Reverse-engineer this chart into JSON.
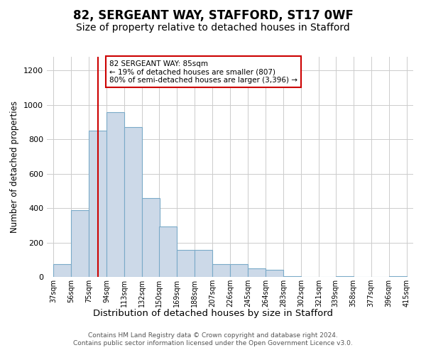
{
  "title1": "82, SERGEANT WAY, STAFFORD, ST17 0WF",
  "title2": "Size of property relative to detached houses in Stafford",
  "xlabel": "Distribution of detached houses by size in Stafford",
  "ylabel": "Number of detached properties",
  "bar_left_edges": [
    37,
    56,
    75,
    94,
    113,
    132,
    150,
    169,
    188,
    207,
    226,
    245,
    264,
    283,
    302,
    321,
    339,
    358,
    377,
    396
  ],
  "bar_heights": [
    75,
    390,
    850,
    960,
    870,
    460,
    295,
    155,
    155,
    75,
    75,
    50,
    40,
    5,
    0,
    0,
    5,
    0,
    0,
    5
  ],
  "bin_width": 19,
  "bar_color": "#ccd9e8",
  "bar_edgecolor": "#7aaac8",
  "ylim": [
    0,
    1280
  ],
  "yticks": [
    0,
    200,
    400,
    600,
    800,
    1000,
    1200
  ],
  "xlim": [
    30,
    422
  ],
  "tick_labels": [
    "37sqm",
    "56sqm",
    "75sqm",
    "94sqm",
    "113sqm",
    "132sqm",
    "150sqm",
    "169sqm",
    "188sqm",
    "207sqm",
    "226sqm",
    "245sqm",
    "264sqm",
    "283sqm",
    "302sqm",
    "321sqm",
    "339sqm",
    "358sqm",
    "377sqm",
    "396sqm",
    "415sqm"
  ],
  "tick_positions": [
    37,
    56,
    75,
    94,
    113,
    132,
    150,
    169,
    188,
    207,
    226,
    245,
    264,
    283,
    302,
    321,
    339,
    358,
    377,
    396,
    415
  ],
  "vline_x": 85,
  "vline_color": "#cc0000",
  "annotation_text": "82 SERGEANT WAY: 85sqm\n← 19% of detached houses are smaller (807)\n80% of semi-detached houses are larger (3,396) →",
  "annotation_box_color": "#ffffff",
  "annotation_box_edgecolor": "#cc0000",
  "footnote": "Contains HM Land Registry data © Crown copyright and database right 2024.\nContains public sector information licensed under the Open Government Licence v3.0.",
  "bg_color": "#ffffff",
  "grid_color": "#cccccc",
  "title1_fontsize": 12,
  "title2_fontsize": 10,
  "xlabel_fontsize": 9.5,
  "ylabel_fontsize": 8.5,
  "tick_fontsize": 7,
  "footnote_fontsize": 6.5
}
